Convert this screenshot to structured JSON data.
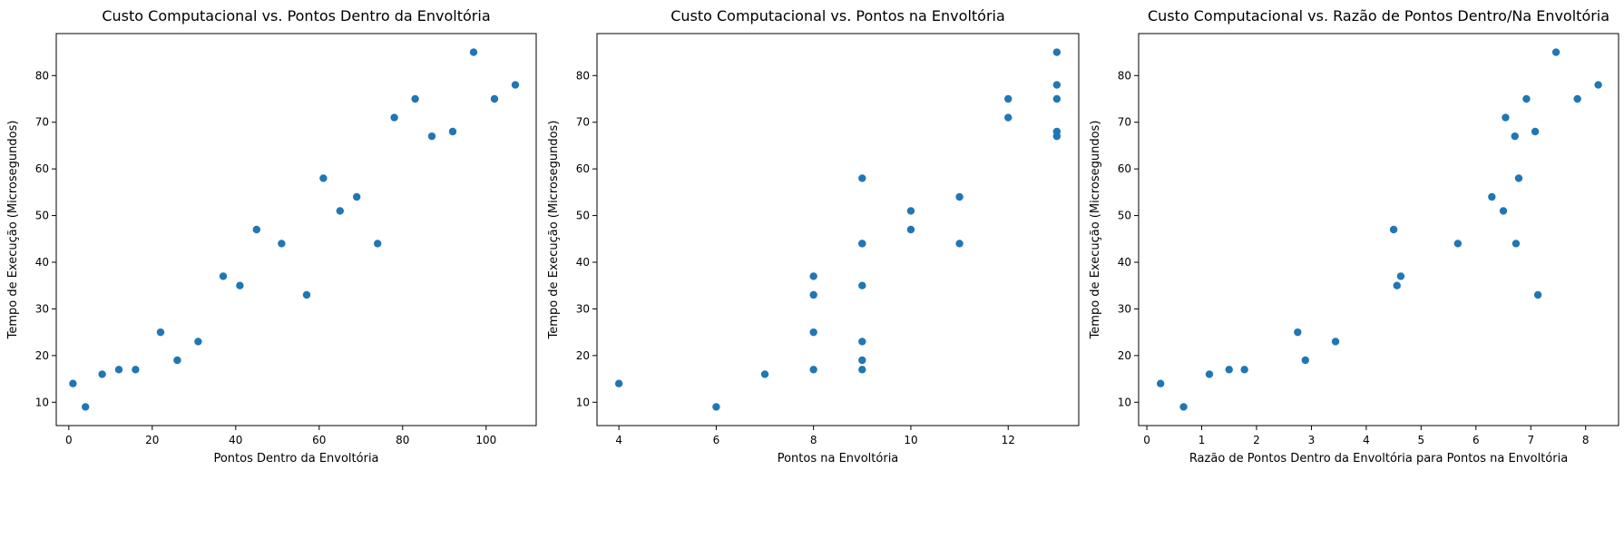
{
  "chart_data": [
    {
      "type": "scatter",
      "title": "Custo Computacional vs. Pontos Dentro da Envoltória",
      "xlabel": "Pontos Dentro da Envoltória",
      "ylabel": "Tempo de Execução (Microsegundos)",
      "xlim": [
        -3,
        112
      ],
      "ylim": [
        5,
        89
      ],
      "xticks": [
        0,
        20,
        40,
        60,
        80,
        100
      ],
      "yticks": [
        10,
        20,
        30,
        40,
        50,
        60,
        70,
        80
      ],
      "grid": false,
      "marker_color": "#1f77b4",
      "x": [
        1,
        4,
        8,
        12,
        16,
        22,
        26,
        31,
        37,
        41,
        45,
        51,
        57,
        61,
        65,
        69,
        74,
        78,
        83,
        87,
        92,
        97,
        102,
        107
      ],
      "y": [
        14,
        9,
        16,
        17,
        17,
        25,
        19,
        23,
        37,
        35,
        47,
        44,
        33,
        58,
        51,
        54,
        44,
        71,
        75,
        67,
        68,
        85,
        75,
        78
      ]
    },
    {
      "type": "scatter",
      "title": "Custo Computacional vs. Pontos na Envoltória",
      "xlabel": "Pontos na Envoltória",
      "ylabel": "Tempo de Execução (Microsegundos)",
      "xlim": [
        3.55,
        13.45
      ],
      "ylim": [
        5,
        89
      ],
      "xticks": [
        4,
        6,
        8,
        10,
        12
      ],
      "yticks": [
        10,
        20,
        30,
        40,
        50,
        60,
        70,
        80
      ],
      "grid": false,
      "marker_color": "#1f77b4",
      "x": [
        4,
        6,
        7,
        8,
        8,
        8,
        8,
        9,
        9,
        9,
        9,
        9,
        9,
        9,
        10,
        10,
        11,
        11,
        12,
        12,
        13,
        13,
        13,
        13,
        13
      ],
      "y": [
        14,
        9,
        16,
        17,
        25,
        33,
        37,
        17,
        19,
        23,
        35,
        44,
        58,
        44,
        47,
        51,
        44,
        54,
        71,
        75,
        67,
        68,
        75,
        78,
        85
      ]
    },
    {
      "type": "scatter",
      "title": "Custo Computacional vs. Razão de Pontos Dentro/Na Envoltória",
      "xlabel": "Razão de Pontos Dentro da Envoltória para Pontos na Envoltória",
      "ylabel": "Tempo de Execução (Microsegundos)",
      "xlim": [
        -0.15,
        8.6
      ],
      "ylim": [
        5,
        89
      ],
      "xticks": [
        0,
        1,
        2,
        3,
        4,
        5,
        6,
        7,
        8
      ],
      "yticks": [
        10,
        20,
        30,
        40,
        50,
        60,
        70,
        80
      ],
      "grid": false,
      "marker_color": "#1f77b4",
      "x": [
        0.25,
        0.67,
        1.14,
        1.5,
        1.78,
        2.75,
        2.89,
        3.44,
        4.5,
        4.56,
        4.63,
        5.67,
        6.29,
        6.5,
        6.54,
        6.71,
        6.73,
        6.78,
        6.92,
        7.08,
        7.13,
        7.46,
        7.85,
        8.23
      ],
      "y": [
        14,
        9,
        16,
        17,
        17,
        25,
        19,
        23,
        47,
        35,
        37,
        44,
        54,
        51,
        71,
        67,
        44,
        58,
        75,
        68,
        33,
        85,
        75,
        78
      ]
    }
  ]
}
